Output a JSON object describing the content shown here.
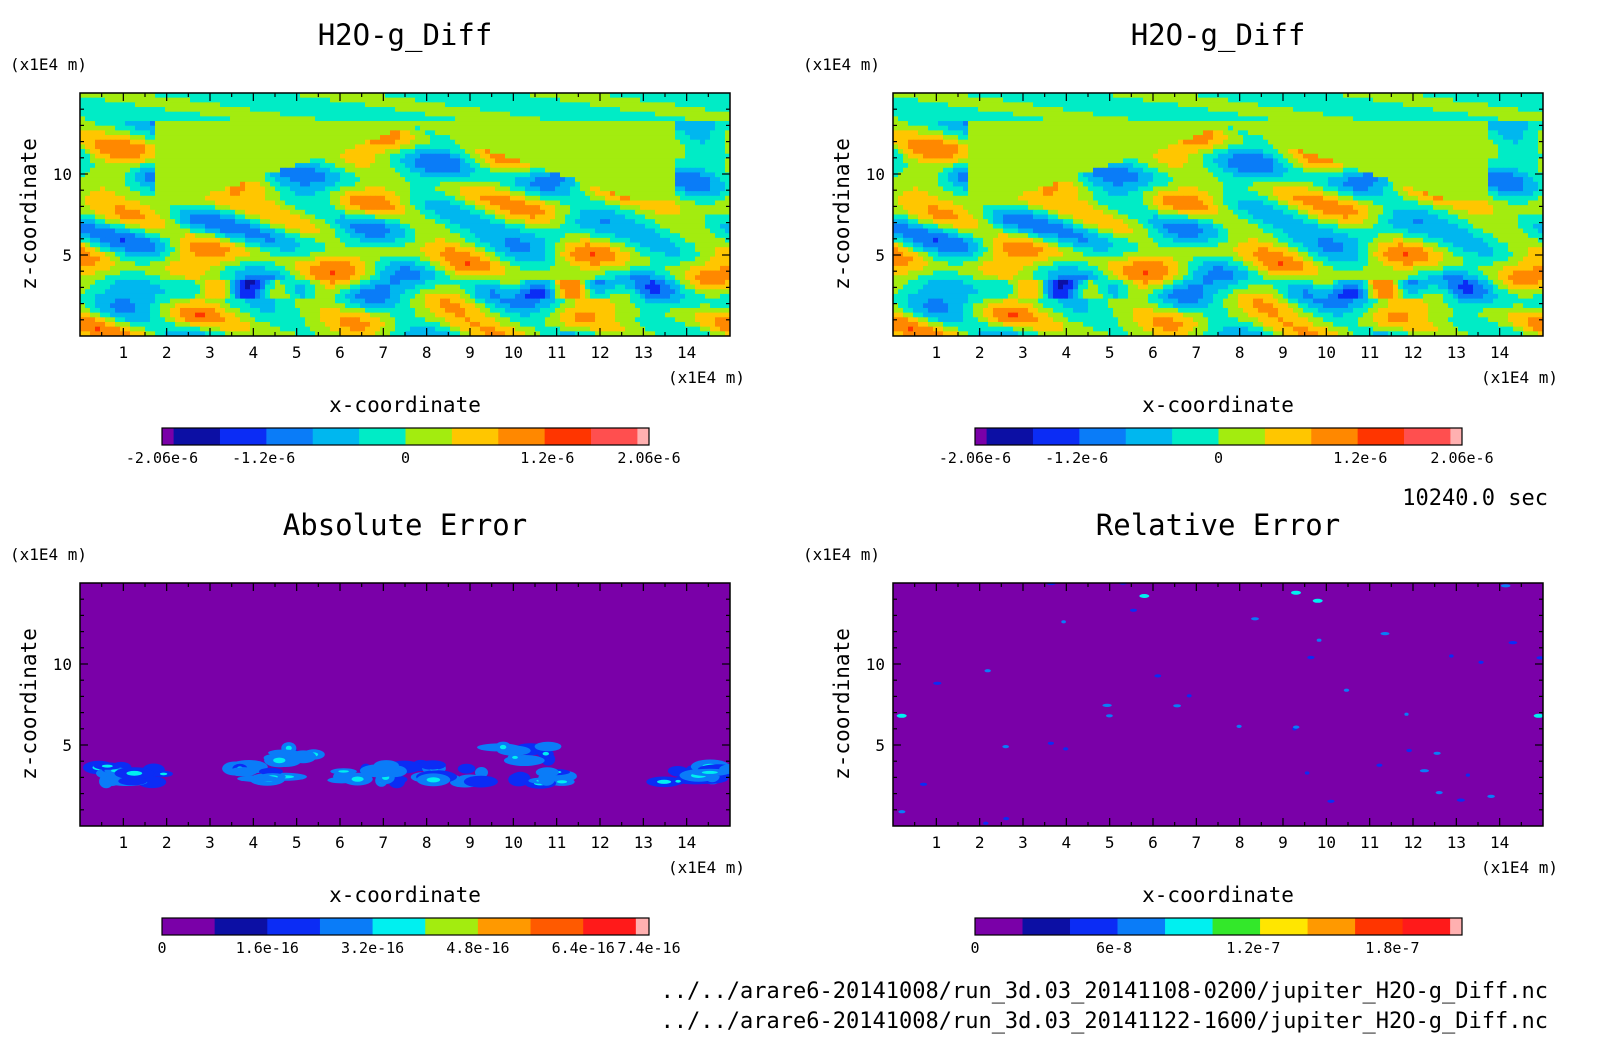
{
  "time_label": "10240.0 sec",
  "file_paths": [
    "../../arare6-20141008/run_3d.03_20141108-0200/jupiter_H2O-g_Diff.nc",
    "../../arare6-20141008/run_3d.03_20141122-1600/jupiter_H2O-g_Diff.nc"
  ],
  "chart_data": [
    {
      "type": "heatmap",
      "title": "H2O-g_Diff",
      "xlabel": "x-coordinate",
      "ylabel": "z-coordinate",
      "x_unit": "(x1E4 m)",
      "y_unit": "(x1E4 m)",
      "xlim": [
        0,
        15
      ],
      "ylim": [
        0,
        15
      ],
      "x_ticks": [
        1,
        2,
        3,
        4,
        5,
        6,
        7,
        8,
        9,
        10,
        11,
        12,
        13,
        14
      ],
      "y_ticks": [
        5,
        10
      ],
      "field": "diff",
      "colorbar": {
        "colors": [
          "#7a00a8",
          "#0c0fa4",
          "#0b2cf5",
          "#0a7cf8",
          "#00b7ef",
          "#00ecc6",
          "#a3ec0f",
          "#ffc600",
          "#ff8800",
          "#ff3500",
          "#ff4f4f",
          "#ffb0b0"
        ],
        "weights": [
          0.25,
          1,
          1,
          1,
          1,
          1,
          1,
          1,
          1,
          1,
          1,
          0.25
        ],
        "tick_labels": [
          "-2.06e-6",
          "-1.2e-6",
          "0",
          "1.2e-6",
          "2.06e-6"
        ],
        "tick_values": [
          -2.06e-06,
          -1.2e-06,
          0,
          1.2e-06,
          2.06e-06
        ],
        "range": [
          -2.06e-06,
          2.06e-06
        ]
      }
    },
    {
      "type": "heatmap",
      "title": "H2O-g_Diff",
      "xlabel": "x-coordinate",
      "ylabel": "z-coordinate",
      "x_unit": "(x1E4 m)",
      "y_unit": "(x1E4 m)",
      "xlim": [
        0,
        15
      ],
      "ylim": [
        0,
        15
      ],
      "x_ticks": [
        1,
        2,
        3,
        4,
        5,
        6,
        7,
        8,
        9,
        10,
        11,
        12,
        13,
        14
      ],
      "y_ticks": [
        5,
        10
      ],
      "field": "diff",
      "colorbar": {
        "colors": [
          "#7a00a8",
          "#0c0fa4",
          "#0b2cf5",
          "#0a7cf8",
          "#00b7ef",
          "#00ecc6",
          "#a3ec0f",
          "#ffc600",
          "#ff8800",
          "#ff3500",
          "#ff4f4f",
          "#ffb0b0"
        ],
        "weights": [
          0.25,
          1,
          1,
          1,
          1,
          1,
          1,
          1,
          1,
          1,
          1,
          0.25
        ],
        "tick_labels": [
          "-2.06e-6",
          "-1.2e-6",
          "0",
          "1.2e-6",
          "2.06e-6"
        ],
        "tick_values": [
          -2.06e-06,
          -1.2e-06,
          0,
          1.2e-06,
          2.06e-06
        ],
        "range": [
          -2.06e-06,
          2.06e-06
        ]
      }
    },
    {
      "type": "heatmap",
      "title": "Absolute Error",
      "xlabel": "x-coordinate",
      "ylabel": "z-coordinate",
      "x_unit": "(x1E4 m)",
      "y_unit": "(x1E4 m)",
      "xlim": [
        0,
        15
      ],
      "ylim": [
        0,
        15
      ],
      "x_ticks": [
        1,
        2,
        3,
        4,
        5,
        6,
        7,
        8,
        9,
        10,
        11,
        12,
        13,
        14
      ],
      "y_ticks": [
        5,
        10
      ],
      "field": "abs",
      "background_color": "#7a00a8",
      "colorbar": {
        "colors": [
          "#7a00a8",
          "#0c0fa4",
          "#0b2cf5",
          "#0a7cf8",
          "#00f0f0",
          "#a3ec0f",
          "#ff9900",
          "#ff5a00",
          "#ff1a1a",
          "#ffb0b0"
        ],
        "weights": [
          1,
          1,
          1,
          1,
          1,
          1,
          1,
          1,
          1,
          0.25
        ],
        "tick_labels": [
          "0",
          "1.6e-16",
          "3.2e-16",
          "4.8e-16",
          "6.4e-16",
          "7.4e-16"
        ],
        "tick_values": [
          0,
          1.6e-16,
          3.2e-16,
          4.8e-16,
          6.4e-16,
          7.4e-16
        ],
        "range": [
          0,
          7.4e-16
        ]
      }
    },
    {
      "type": "heatmap",
      "title": "Relative Error",
      "xlabel": "x-coordinate",
      "ylabel": "z-coordinate",
      "x_unit": "(x1E4 m)",
      "y_unit": "(x1E4 m)",
      "xlim": [
        0,
        15
      ],
      "ylim": [
        0,
        15
      ],
      "x_ticks": [
        1,
        2,
        3,
        4,
        5,
        6,
        7,
        8,
        9,
        10,
        11,
        12,
        13,
        14
      ],
      "y_ticks": [
        5,
        10
      ],
      "field": "rel",
      "background_color": "#7a00a8",
      "colorbar": {
        "colors": [
          "#7a00a8",
          "#0c0fa4",
          "#0b2cf5",
          "#0a7cf8",
          "#00f0f0",
          "#33e82a",
          "#ffe600",
          "#ff9900",
          "#ff3500",
          "#ff1a1a",
          "#ffb0b0"
        ],
        "weights": [
          1,
          1,
          1,
          1,
          1,
          1,
          1,
          1,
          1,
          1,
          0.25
        ],
        "tick_labels": [
          "0",
          "6e-8",
          "1.2e-7",
          "1.8e-7"
        ],
        "tick_values": [
          0,
          6e-08,
          1.2e-07,
          1.8e-07
        ],
        "range": [
          0,
          2.1e-07
        ]
      }
    }
  ]
}
